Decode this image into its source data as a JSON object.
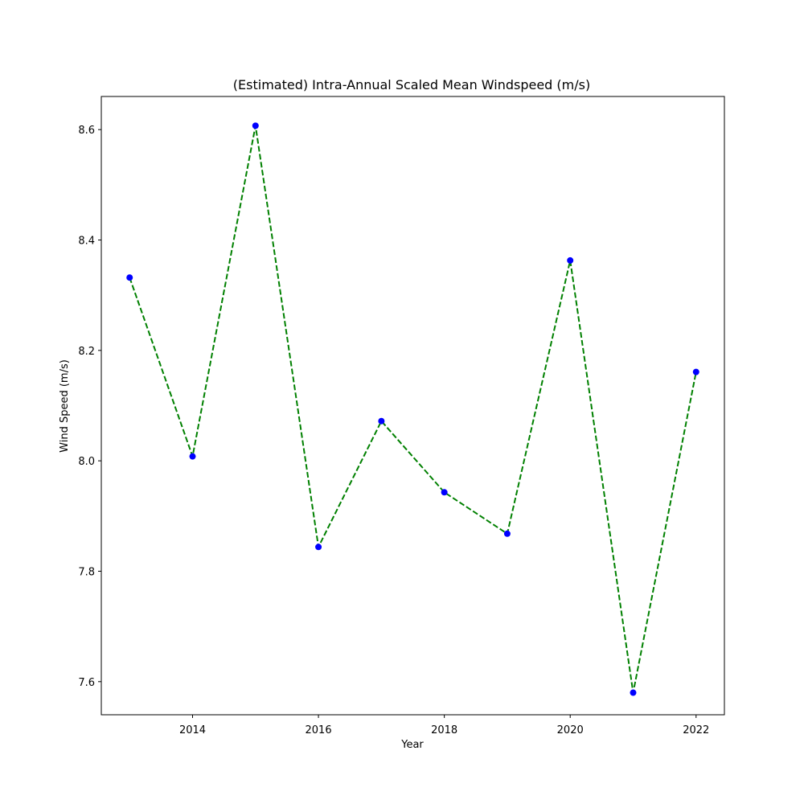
{
  "chart_data": {
    "type": "line",
    "title": "(Estimated) Intra-Annual Scaled Mean Windspeed (m/s)",
    "xlabel": "Year",
    "ylabel": "Wind Speed (m/s)",
    "xlim": [
      2012.55,
      2022.45
    ],
    "ylim": [
      7.54,
      8.66
    ],
    "xticks": [
      2014,
      2016,
      2018,
      2020,
      2022
    ],
    "yticks": [
      7.6,
      7.8,
      8.0,
      8.2,
      8.4,
      8.6
    ],
    "xtick_labels": [
      "2014",
      "2016",
      "2018",
      "2020",
      "2022"
    ],
    "ytick_labels": [
      "7.6",
      "7.8",
      "8.0",
      "8.2",
      "8.4",
      "8.6"
    ],
    "grid": false,
    "legend": "none",
    "series": [
      {
        "x": [
          2013,
          2014,
          2015,
          2016,
          2017,
          2018,
          2019,
          2020,
          2021,
          2022
        ],
        "values": [
          8.332,
          8.008,
          8.607,
          7.844,
          8.072,
          7.943,
          7.868,
          8.363,
          7.58,
          8.161
        ],
        "line_color": "#008000",
        "line_style": "dashed",
        "marker_color": "#0000ff"
      }
    ]
  }
}
